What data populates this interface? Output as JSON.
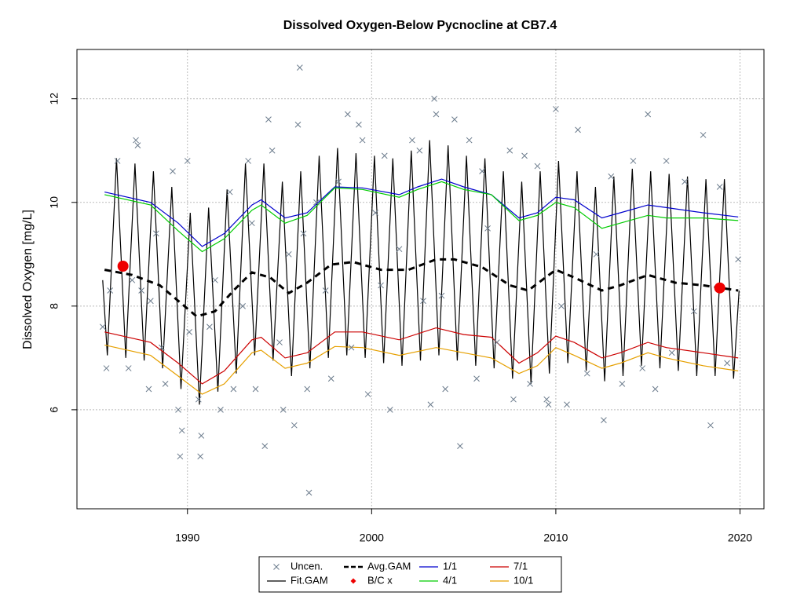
{
  "chart_data": {
    "type": "line",
    "title": "Dissolved Oxygen-Below Pycnocline at CB7.4",
    "y_label": "Dissolved Oxygen [mg/L]",
    "xlim": [
      1984,
      2021.3
    ],
    "ylim": [
      4.09,
      12.95
    ],
    "xticks": [
      1990,
      2000,
      2010,
      2020
    ],
    "yticks": [
      6,
      8,
      10,
      12
    ],
    "grid": true,
    "legend": "bottom",
    "series": [
      {
        "name": "Uncen.",
        "kind": "scatter",
        "color": "#6b7b8c",
        "x": [
          1985.4,
          1985.6,
          1985.8,
          1986.2,
          1986.8,
          1987.0,
          1987.2,
          1987.3,
          1987.5,
          1987.9,
          1988.0,
          1988.3,
          1988.6,
          1988.8,
          1989.2,
          1989.5,
          1989.6,
          1989.7,
          1990.0,
          1990.1,
          1990.6,
          1990.7,
          1990.75,
          1991.2,
          1991.5,
          1991.8,
          1992.3,
          1992.5,
          1993.0,
          1993.3,
          1993.5,
          1993.7,
          1994.2,
          1994.4,
          1994.6,
          1995.0,
          1995.2,
          1995.5,
          1995.8,
          1996.0,
          1996.1,
          1996.3,
          1996.5,
          1996.6,
          1997.0,
          1997.5,
          1997.8,
          1998.2,
          1998.7,
          1998.9,
          1999.3,
          1999.5,
          1999.8,
          2000.2,
          2000.5,
          2000.7,
          2001.0,
          2001.5,
          2002.2,
          2002.6,
          2002.8,
          2003.2,
          2003.4,
          2003.5,
          2003.8,
          2004.0,
          2004.5,
          2004.8,
          2005.3,
          2005.7,
          2006.0,
          2006.3,
          2006.8,
          2007.5,
          2007.7,
          2008.3,
          2008.6,
          2009.0,
          2009.5,
          2009.6,
          2010.0,
          2010.3,
          2010.6,
          2011.2,
          2011.7,
          2012.2,
          2012.6,
          2013.0,
          2013.6,
          2014.2,
          2014.7,
          2015.0,
          2015.4,
          2016.0,
          2016.3,
          2017.0,
          2017.5,
          2018.0,
          2018.4,
          2018.9,
          2019.3,
          2019.9
        ],
        "values": [
          7.6,
          6.8,
          8.3,
          10.8,
          6.8,
          8.5,
          11.2,
          11.1,
          8.3,
          6.4,
          8.1,
          9.4,
          7.2,
          6.5,
          10.6,
          6.0,
          5.1,
          5.6,
          10.8,
          7.5,
          6.2,
          5.1,
          5.5,
          7.6,
          8.5,
          6.0,
          10.2,
          6.4,
          8.0,
          10.8,
          9.6,
          6.4,
          5.3,
          11.6,
          11.0,
          7.3,
          6.0,
          9.0,
          5.7,
          11.5,
          12.6,
          9.4,
          6.4,
          4.4,
          10.0,
          8.3,
          6.6,
          10.4,
          11.7,
          7.2,
          11.5,
          11.2,
          6.3,
          9.8,
          8.4,
          10.9,
          6.0,
          9.1,
          11.2,
          11.0,
          8.1,
          6.1,
          12.0,
          11.7,
          8.2,
          6.4,
          11.6,
          5.3,
          11.2,
          6.6,
          10.6,
          9.5,
          7.3,
          11.0,
          6.2,
          10.9,
          6.5,
          10.7,
          6.2,
          6.1,
          11.8,
          8.0,
          6.1,
          11.4,
          6.7,
          9.0,
          5.8,
          10.5,
          6.5,
          10.8,
          6.8,
          11.7,
          6.4,
          10.8,
          7.1,
          10.4,
          7.9,
          11.3,
          5.7,
          10.3,
          6.9,
          8.9
        ]
      },
      {
        "name": "Fit.GAM",
        "kind": "line",
        "color": "#000000",
        "x": [
          1985.4,
          1985.65,
          1986.15,
          1986.65,
          1987.15,
          1987.65,
          1988.15,
          1988.65,
          1989.15,
          1989.65,
          1990.15,
          1990.65,
          1991.15,
          1991.65,
          1992.15,
          1992.65,
          1993.15,
          1993.65,
          1994.15,
          1994.65,
          1995.15,
          1995.65,
          1996.15,
          1996.65,
          1997.15,
          1997.65,
          1998.15,
          1998.65,
          1999.15,
          1999.65,
          2000.15,
          2000.65,
          2001.15,
          2001.65,
          2002.15,
          2002.65,
          2003.15,
          2003.65,
          2004.15,
          2004.65,
          2005.15,
          2005.65,
          2006.15,
          2006.65,
          2007.15,
          2007.65,
          2008.15,
          2008.65,
          2009.15,
          2009.65,
          2010.15,
          2010.65,
          2011.15,
          2011.65,
          2012.15,
          2012.65,
          2013.15,
          2013.65,
          2014.15,
          2014.65,
          2015.15,
          2015.65,
          2016.15,
          2016.65,
          2017.15,
          2017.65,
          2018.15,
          2018.65,
          2019.15,
          2019.65,
          2019.95
        ],
        "values": [
          8.5,
          7.05,
          10.85,
          7.0,
          10.75,
          6.95,
          10.6,
          6.8,
          10.3,
          6.4,
          9.8,
          6.1,
          9.9,
          6.35,
          10.25,
          6.7,
          10.75,
          7.05,
          10.75,
          6.95,
          10.4,
          6.65,
          10.6,
          6.8,
          10.9,
          7.0,
          11.05,
          7.05,
          10.95,
          7.0,
          10.9,
          6.9,
          10.85,
          6.85,
          11.0,
          6.95,
          11.2,
          7.05,
          11.1,
          6.95,
          10.9,
          6.85,
          10.85,
          6.8,
          10.6,
          6.6,
          10.4,
          6.5,
          10.6,
          6.7,
          10.8,
          6.9,
          10.6,
          6.75,
          10.3,
          6.55,
          10.5,
          6.65,
          10.65,
          6.85,
          10.6,
          6.8,
          10.55,
          6.75,
          10.5,
          6.65,
          10.45,
          6.65,
          10.45,
          6.6,
          8.3
        ]
      },
      {
        "name": "Avg.GAM",
        "kind": "dashed",
        "color": "#000000",
        "x": [
          1985.5,
          1987,
          1988.5,
          1989.5,
          1990.5,
          1991.5,
          1992.5,
          1993.5,
          1994.5,
          1995.5,
          1996.5,
          1997.8,
          1999,
          2000.5,
          2002,
          2003.5,
          2004.5,
          2006,
          2007.5,
          2008.5,
          2010,
          2011,
          2012.5,
          2013.5,
          2015,
          2016.5,
          2018,
          2019.9
        ],
        "values": [
          8.7,
          8.6,
          8.4,
          8.1,
          7.8,
          7.9,
          8.3,
          8.65,
          8.55,
          8.25,
          8.45,
          8.8,
          8.85,
          8.7,
          8.7,
          8.9,
          8.9,
          8.75,
          8.4,
          8.3,
          8.7,
          8.55,
          8.3,
          8.4,
          8.6,
          8.45,
          8.4,
          8.3
        ]
      },
      {
        "name": "B/C x",
        "kind": "point",
        "color": "#ee0000",
        "x": [
          1986.5,
          2018.9
        ],
        "values": [
          8.77,
          8.35
        ]
      },
      {
        "name": "1/1",
        "kind": "line",
        "color": "#0000cd",
        "x": [
          1985.5,
          1988,
          1989.5,
          1990.8,
          1992,
          1993.5,
          1994,
          1995.3,
          1996.5,
          1998,
          1999.5,
          2001.5,
          2002.5,
          2003.8,
          2005,
          2006.5,
          2008,
          2009,
          2010,
          2011,
          2012.5,
          2013.5,
          2015,
          2016,
          2018,
          2019.9
        ],
        "values": [
          10.2,
          10.0,
          9.6,
          9.15,
          9.4,
          9.95,
          10.05,
          9.7,
          9.8,
          10.3,
          10.28,
          10.15,
          10.3,
          10.45,
          10.3,
          10.15,
          9.7,
          9.8,
          10.1,
          10.05,
          9.7,
          9.8,
          9.95,
          9.9,
          9.8,
          9.72
        ]
      },
      {
        "name": "4/1",
        "kind": "line",
        "color": "#00cc00",
        "x": [
          1985.5,
          1988,
          1989.5,
          1990.8,
          1992,
          1993.5,
          1994,
          1995.3,
          1996.5,
          1998,
          1999.5,
          2001.5,
          2002.5,
          2003.8,
          2005,
          2006.5,
          2008,
          2009,
          2010,
          2011,
          2012.5,
          2013.5,
          2015,
          2016,
          2018,
          2019.9
        ],
        "values": [
          10.15,
          9.95,
          9.45,
          9.05,
          9.3,
          9.85,
          9.95,
          9.6,
          9.75,
          10.28,
          10.25,
          10.1,
          10.25,
          10.4,
          10.25,
          10.15,
          9.65,
          9.75,
          10.0,
          9.9,
          9.5,
          9.6,
          9.75,
          9.7,
          9.7,
          9.65
        ]
      },
      {
        "name": "7/1",
        "kind": "line",
        "color": "#cc0000",
        "x": [
          1985.5,
          1988,
          1989.5,
          1990.8,
          1992,
          1993.5,
          1994,
          1995.3,
          1996.5,
          1998,
          1999.5,
          2001.5,
          2003.5,
          2005,
          2006.5,
          2008,
          2009,
          2010,
          2011,
          2012.5,
          2013.5,
          2015,
          2016,
          2018,
          2019.9
        ],
        "values": [
          7.5,
          7.3,
          6.9,
          6.5,
          6.75,
          7.35,
          7.4,
          7.0,
          7.1,
          7.5,
          7.5,
          7.35,
          7.58,
          7.45,
          7.4,
          6.9,
          7.1,
          7.42,
          7.3,
          7.0,
          7.1,
          7.3,
          7.2,
          7.1,
          7.0
        ]
      },
      {
        "name": "10/1",
        "kind": "line",
        "color": "#e6a000",
        "x": [
          1985.5,
          1988,
          1989.5,
          1990.8,
          1992,
          1993.5,
          1994,
          1995.3,
          1996.5,
          1998,
          1999.5,
          2001.5,
          2003.5,
          2005,
          2006.5,
          2008,
          2009,
          2010,
          2011,
          2012.5,
          2013.5,
          2015,
          2016,
          2018,
          2019.9
        ],
        "values": [
          7.25,
          7.05,
          6.65,
          6.3,
          6.5,
          7.1,
          7.15,
          6.8,
          6.9,
          7.22,
          7.2,
          7.05,
          7.2,
          7.1,
          7.0,
          6.7,
          6.85,
          7.2,
          7.05,
          6.8,
          6.9,
          7.1,
          7.0,
          6.85,
          6.75
        ]
      }
    ]
  }
}
